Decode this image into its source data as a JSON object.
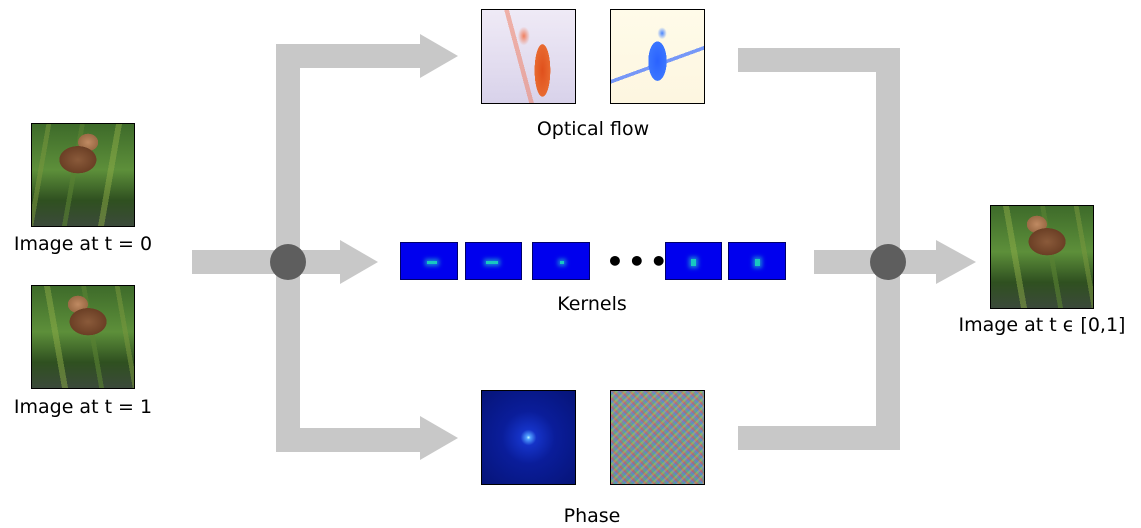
{
  "inputs": {
    "first_label": "Image at t = 0",
    "second_label": "Image at t = 1"
  },
  "branches": {
    "flow_label": "Optical flow",
    "kernels_label": "Kernels",
    "kernels_ellipsis": "•••",
    "phase_label": "Phase"
  },
  "output": {
    "label": "Image at t ϵ [0,1]"
  },
  "colors": {
    "arrow": "#c8c8c8",
    "junction": "#5e5e5e",
    "kernel_bg": "#0000ee"
  }
}
